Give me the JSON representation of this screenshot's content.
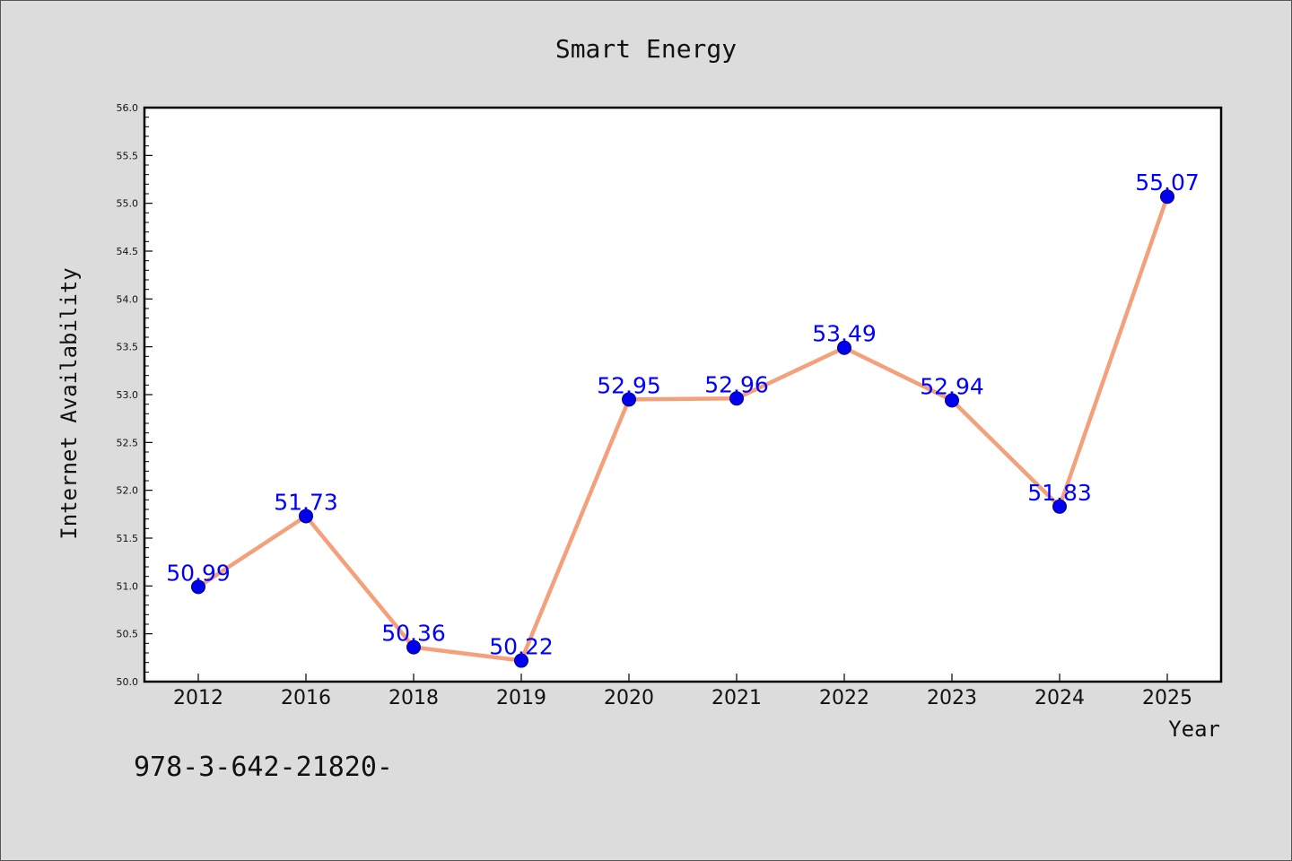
{
  "chart_data": {
    "type": "line",
    "title": "Smart Energy",
    "xlabel": "Year",
    "ylabel": "Internet Availability",
    "categories": [
      "2012",
      "2016",
      "2018",
      "2019",
      "2020",
      "2021",
      "2022",
      "2023",
      "2024",
      "2025"
    ],
    "series": [
      {
        "values": [
          50.99,
          51.73,
          50.36,
          50.22,
          52.95,
          52.96,
          53.49,
          52.94,
          51.83,
          55.07
        ],
        "labels": [
          "50.99",
          "51.73",
          "50.36",
          "50.22",
          "52.95",
          "52.96",
          "53.49",
          "52.94",
          "51.83",
          "55.07"
        ]
      }
    ],
    "ylim": [
      50.0,
      56.0
    ],
    "yticks": [
      "50.0",
      "50.5",
      "51.0",
      "51.5",
      "52.0",
      "52.5",
      "53.0",
      "53.5",
      "54.0",
      "54.5",
      "55.0",
      "55.5",
      "56.0"
    ],
    "grid": false,
    "legend": "none",
    "colors": {
      "line": "#f4a07a",
      "marker": "#0000ee",
      "data_label": "#0000ff",
      "plot_bg": "#ffffff",
      "figure_bg": "#dcdcdc"
    }
  },
  "footer": {
    "text": "978-3-642-21820-"
  }
}
